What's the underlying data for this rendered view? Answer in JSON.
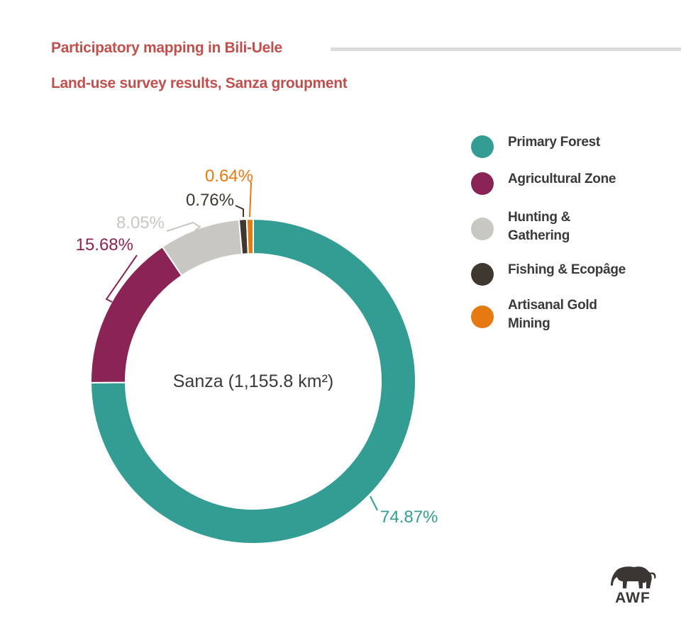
{
  "header": {
    "title": "Participatory mapping in Bili-Uele",
    "subtitle": "Land-use survey results, Sanza groupment"
  },
  "chart_data": {
    "type": "pie",
    "variant": "donut",
    "center_label": "Sanza (1,155.8 km²)",
    "slices": [
      {
        "name": "Primary Forest",
        "value": 74.87,
        "label": "74.87%",
        "color": "#339d94"
      },
      {
        "name": "Agricultural Zone",
        "value": 15.68,
        "label": "15.68%",
        "color": "#8a2454"
      },
      {
        "name": "Hunting &\nGathering",
        "value": 8.05,
        "label": "8.05%",
        "color": "#c8c7c2"
      },
      {
        "name": "Fishing & Ecopâge",
        "value": 0.76,
        "label": "0.76%",
        "color": "#3f3830"
      },
      {
        "name": "Artisanal Gold\nMining",
        "value": 0.64,
        "label": "0.64%",
        "color": "#e57a12"
      }
    ],
    "label_colors": [
      "#339d94",
      "#8a2454",
      "#c8c7c2",
      "#3f3830",
      "#e57a12"
    ],
    "legend_position": "right",
    "direction": "clockwise-from-top"
  },
  "logo": {
    "text": "AWF",
    "icon": "elephant-icon"
  }
}
